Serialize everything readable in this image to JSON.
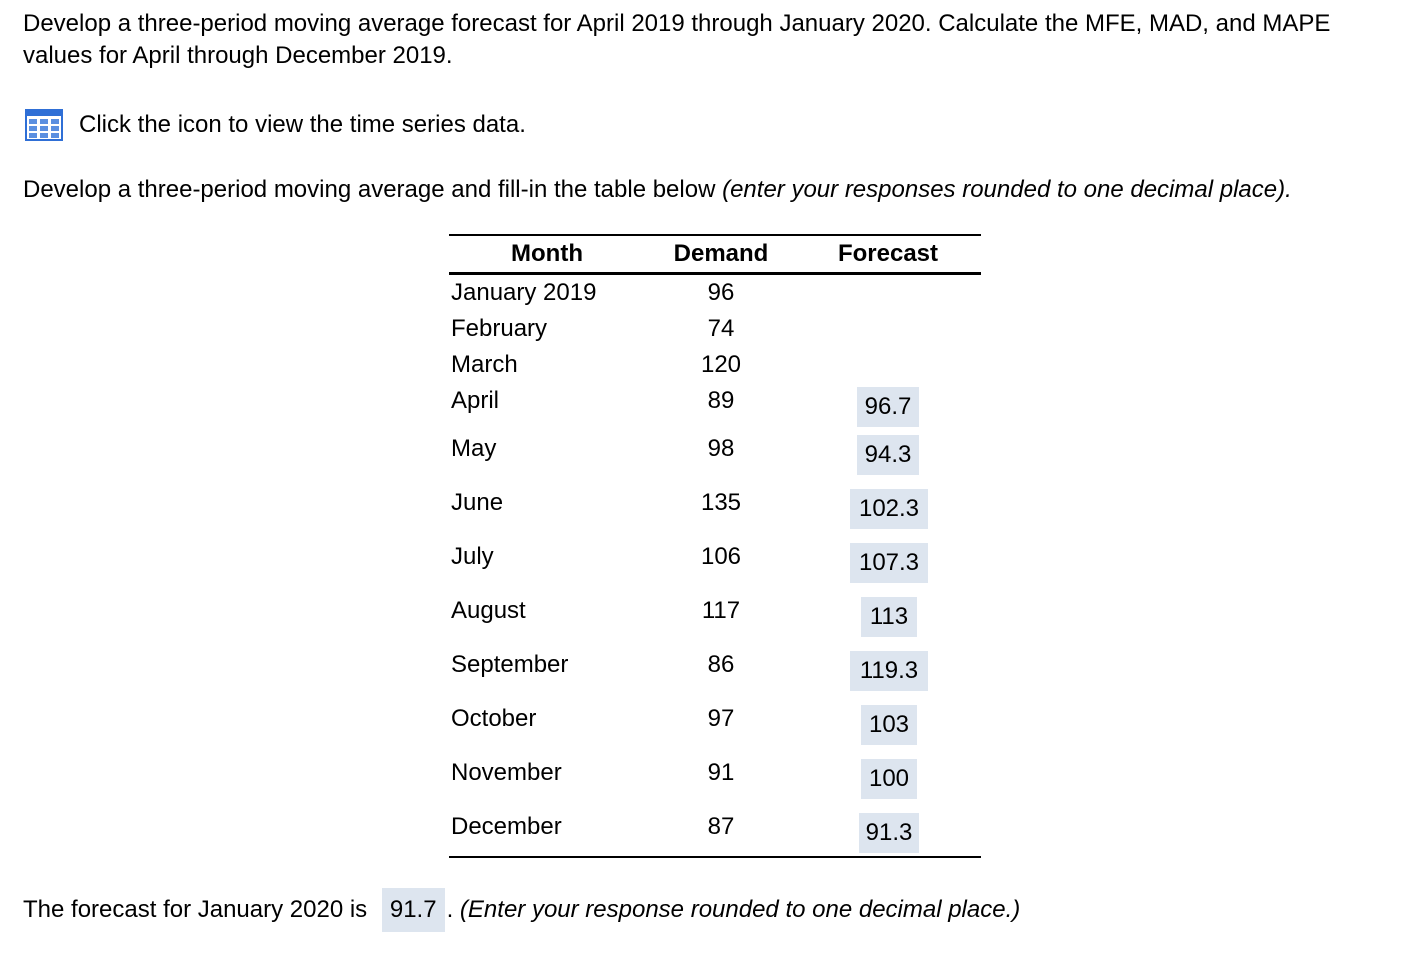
{
  "question": {
    "intro": "Develop a three-period moving average forecast for April 2019 through January 2020. Calculate the MFE, MAD, and MAPE values for April through December 2019.",
    "icon_label": "Click the icon to view the time series data.",
    "instruction_main": "Develop a three-period moving average and fill-in the table below ",
    "instruction_note": "(enter your responses rounded to one decimal place)."
  },
  "table": {
    "headers": {
      "month": "Month",
      "demand": "Demand",
      "forecast": "Forecast"
    },
    "rows": [
      {
        "month": "January 2019",
        "demand": "96",
        "forecast": ""
      },
      {
        "month": "February",
        "demand": "74",
        "forecast": ""
      },
      {
        "month": "March",
        "demand": "120",
        "forecast": ""
      },
      {
        "month": "April",
        "demand": "89",
        "forecast": "96.7"
      },
      {
        "month": "May",
        "demand": "98",
        "forecast": "94.3"
      },
      {
        "month": "June",
        "demand": "135",
        "forecast": "102.3"
      },
      {
        "month": "July",
        "demand": "106",
        "forecast": "107.3"
      },
      {
        "month": "August",
        "demand": "117",
        "forecast": "113"
      },
      {
        "month": "September",
        "demand": "86",
        "forecast": "119.3"
      },
      {
        "month": "October",
        "demand": "97",
        "forecast": "103"
      },
      {
        "month": "November",
        "demand": "91",
        "forecast": "100"
      },
      {
        "month": "December",
        "demand": "87",
        "forecast": "91.3"
      }
    ]
  },
  "final": {
    "prefix": "The forecast for January 2020 is",
    "value": "91.7",
    "suffix_punct": ".",
    "note": "(Enter your response rounded to one decimal place.)"
  },
  "colors": {
    "input_background": "#dde5ef",
    "icon_blue": "#2f6fd6"
  },
  "icons": {
    "data_table": "table-grid-icon"
  }
}
